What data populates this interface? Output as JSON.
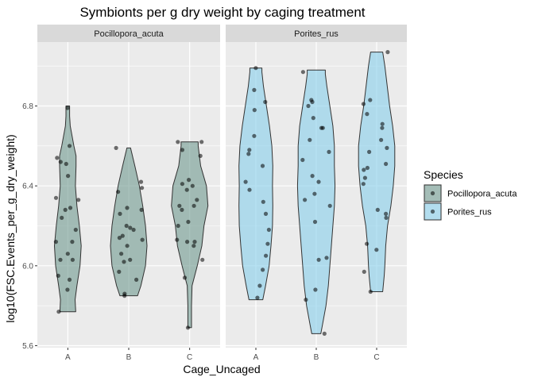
{
  "chart_data": {
    "type": "violin",
    "title": "Symbionts per g dry weight by caging treatment",
    "xlabel": "Cage_Uncaged",
    "ylabel": "log10(FSC.Events_per_g_dry_weight)",
    "categories": [
      "A",
      "B",
      "C"
    ],
    "ylim": [
      5.59,
      7.12
    ],
    "yticks": [
      "5.6",
      "6.0",
      "6.4",
      "6.8"
    ],
    "grid": true,
    "legend": {
      "title": "Species",
      "position": "right",
      "entries": [
        {
          "label": "Pocillopora_acuta",
          "color": "#6f9a8f"
        },
        {
          "label": "Porites_rus",
          "color": "#87ceeb"
        }
      ]
    },
    "panels": [
      {
        "name": "Pocillopora_acuta",
        "color": "#6f9a8f",
        "violins": [
          {
            "category": "A",
            "ymin": 5.77,
            "ymax": 6.8,
            "profile": [
              [
                5.77,
                0.26
              ],
              [
                5.83,
                0.24
              ],
              [
                5.9,
                0.3
              ],
              [
                6.0,
                0.4
              ],
              [
                6.1,
                0.44
              ],
              [
                6.2,
                0.38
              ],
              [
                6.3,
                0.3
              ],
              [
                6.4,
                0.25
              ],
              [
                6.5,
                0.27
              ],
              [
                6.55,
                0.27
              ],
              [
                6.6,
                0.2
              ],
              [
                6.7,
                0.08
              ],
              [
                6.75,
                0.06
              ],
              [
                6.8,
                0.06
              ]
            ],
            "points": [
              6.79,
              6.6,
              6.54,
              6.52,
              6.51,
              6.45,
              6.34,
              6.33,
              6.29,
              6.28,
              6.24,
              6.18,
              6.12,
              6.12,
              6.06,
              6.03,
              6.03,
              5.95,
              5.93,
              5.88,
              5.77
            ]
          },
          {
            "category": "B",
            "ymin": 5.85,
            "ymax": 6.59,
            "profile": [
              [
                5.85,
                0.29
              ],
              [
                5.9,
                0.4
              ],
              [
                6.0,
                0.55
              ],
              [
                6.1,
                0.6
              ],
              [
                6.2,
                0.55
              ],
              [
                6.3,
                0.46
              ],
              [
                6.4,
                0.35
              ],
              [
                6.5,
                0.2
              ],
              [
                6.59,
                0.06
              ]
            ],
            "points": [
              6.59,
              6.42,
              6.39,
              6.37,
              6.29,
              6.28,
              6.26,
              6.2,
              6.19,
              6.18,
              6.15,
              6.14,
              6.13,
              6.1,
              6.06,
              6.03,
              6.02,
              5.97,
              5.93,
              5.86,
              5.85
            ]
          },
          {
            "category": "C",
            "ymin": 5.69,
            "ymax": 6.62,
            "profile": [
              [
                5.69,
                0.06
              ],
              [
                5.8,
                0.06
              ],
              [
                5.9,
                0.08
              ],
              [
                6.0,
                0.25
              ],
              [
                6.1,
                0.4
              ],
              [
                6.2,
                0.47
              ],
              [
                6.3,
                0.6
              ],
              [
                6.4,
                0.55
              ],
              [
                6.5,
                0.36
              ],
              [
                6.6,
                0.28
              ],
              [
                6.62,
                0.28
              ]
            ],
            "points": [
              6.62,
              6.62,
              6.58,
              6.55,
              6.43,
              6.41,
              6.4,
              6.38,
              6.33,
              6.3,
              6.3,
              6.28,
              6.22,
              6.2,
              6.13,
              6.12,
              6.12,
              6.1,
              6.03,
              5.94,
              5.69
            ]
          }
        ]
      },
      {
        "name": "Porites_rus",
        "color": "#87ceeb",
        "violins": [
          {
            "category": "A",
            "ymin": 5.83,
            "ymax": 6.99,
            "profile": [
              [
                5.83,
                0.23
              ],
              [
                5.9,
                0.32
              ],
              [
                6.0,
                0.44
              ],
              [
                6.1,
                0.5
              ],
              [
                6.2,
                0.55
              ],
              [
                6.3,
                0.56
              ],
              [
                6.4,
                0.55
              ],
              [
                6.5,
                0.56
              ],
              [
                6.6,
                0.53
              ],
              [
                6.7,
                0.45
              ],
              [
                6.8,
                0.35
              ],
              [
                6.9,
                0.25
              ],
              [
                6.97,
                0.2
              ],
              [
                6.99,
                0.2
              ]
            ],
            "points": [
              6.99,
              6.88,
              6.82,
              6.78,
              6.65,
              6.58,
              6.56,
              6.5,
              6.42,
              6.38,
              6.32,
              6.26,
              6.18,
              6.11,
              6.05,
              5.98,
              5.9,
              5.84
            ]
          },
          {
            "category": "B",
            "ymin": 5.66,
            "ymax": 6.98,
            "profile": [
              [
                5.66,
                0.15
              ],
              [
                5.7,
                0.2
              ],
              [
                5.8,
                0.32
              ],
              [
                5.9,
                0.4
              ],
              [
                6.0,
                0.45
              ],
              [
                6.1,
                0.5
              ],
              [
                6.2,
                0.55
              ],
              [
                6.3,
                0.6
              ],
              [
                6.4,
                0.62
              ],
              [
                6.5,
                0.6
              ],
              [
                6.6,
                0.6
              ],
              [
                6.7,
                0.55
              ],
              [
                6.8,
                0.45
              ],
              [
                6.9,
                0.35
              ],
              [
                6.96,
                0.3
              ],
              [
                6.98,
                0.3
              ]
            ],
            "points": [
              6.97,
              6.83,
              6.82,
              6.8,
              6.74,
              6.69,
              6.69,
              6.63,
              6.57,
              6.53,
              6.45,
              6.42,
              6.36,
              6.33,
              6.3,
              6.22,
              6.04,
              6.03,
              5.88,
              5.83,
              5.66
            ]
          },
          {
            "category": "C",
            "ymin": 5.87,
            "ymax": 7.07,
            "profile": [
              [
                5.87,
                0.2
              ],
              [
                5.95,
                0.25
              ],
              [
                6.0,
                0.27
              ],
              [
                6.1,
                0.3
              ],
              [
                6.2,
                0.36
              ],
              [
                6.3,
                0.47
              ],
              [
                6.4,
                0.55
              ],
              [
                6.5,
                0.6
              ],
              [
                6.6,
                0.6
              ],
              [
                6.7,
                0.53
              ],
              [
                6.8,
                0.43
              ],
              [
                6.9,
                0.35
              ],
              [
                7.0,
                0.27
              ],
              [
                7.07,
                0.2
              ]
            ],
            "points": [
              7.07,
              6.83,
              6.81,
              6.76,
              6.71,
              6.69,
              6.63,
              6.59,
              6.57,
              6.51,
              6.49,
              6.48,
              6.44,
              6.41,
              6.28,
              6.26,
              6.24,
              6.11,
              6.08,
              5.97,
              5.87
            ]
          }
        ]
      }
    ]
  }
}
